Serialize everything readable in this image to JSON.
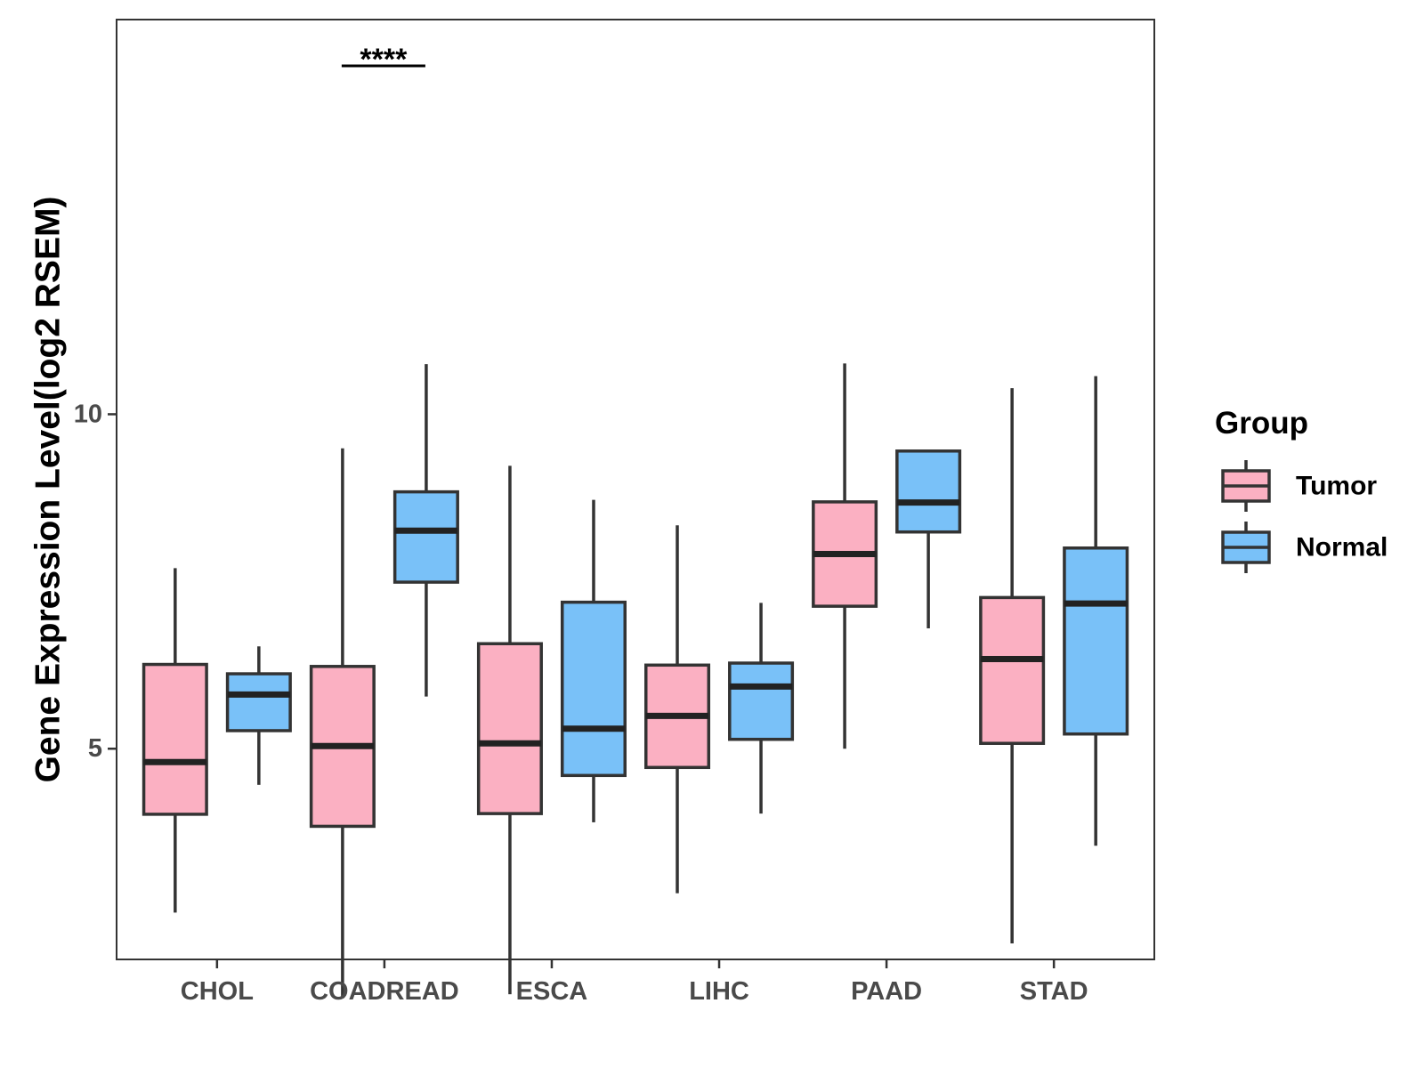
{
  "chart_data": {
    "type": "boxplot",
    "title": "",
    "xlabel": "",
    "ylabel": "Gene Expression Level(log2 RSEM)",
    "ylim": [
      1.85,
      15.9
    ],
    "yticks": [
      5,
      10
    ],
    "categories": [
      "CHOL",
      "COADREAD",
      "ESCA",
      "LIHC",
      "PAAD",
      "STAD"
    ],
    "series": [
      {
        "name": "Tumor",
        "color": "#fbb0c2",
        "boxes": [
          {
            "min": 2.55,
            "q1": 4.02,
            "median": 4.8,
            "q3": 6.26,
            "max": 7.7
          },
          {
            "min": 1.27,
            "q1": 3.84,
            "median": 5.04,
            "q3": 6.23,
            "max": 9.49
          },
          {
            "min": 1.33,
            "q1": 4.03,
            "median": 5.08,
            "q3": 6.57,
            "max": 9.23
          },
          {
            "min": 2.84,
            "q1": 4.72,
            "median": 5.49,
            "q3": 6.25,
            "max": 8.34
          },
          {
            "min": 5.0,
            "q1": 7.13,
            "median": 7.91,
            "q3": 8.69,
            "max": 10.76
          },
          {
            "min": 2.09,
            "q1": 5.08,
            "median": 6.34,
            "q3": 7.26,
            "max": 10.39
          }
        ]
      },
      {
        "name": "Normal",
        "color": "#79c1f8",
        "boxes": [
          {
            "min": 4.46,
            "q1": 5.27,
            "median": 5.81,
            "q3": 6.12,
            "max": 6.53
          },
          {
            "min": 5.78,
            "q1": 7.49,
            "median": 8.26,
            "q3": 8.84,
            "max": 10.75
          },
          {
            "min": 3.9,
            "q1": 4.6,
            "median": 5.3,
            "q3": 7.19,
            "max": 8.72
          },
          {
            "min": 4.03,
            "q1": 5.14,
            "median": 5.93,
            "q3": 6.28,
            "max": 7.18
          },
          {
            "min": 6.8,
            "q1": 8.24,
            "median": 8.68,
            "q3": 9.45,
            "max": 9.45
          },
          {
            "min": 3.55,
            "q1": 5.22,
            "median": 7.17,
            "q3": 8.0,
            "max": 10.57
          }
        ]
      }
    ],
    "annotations": [
      {
        "category": "COADREAD",
        "text": "****"
      }
    ],
    "legend": {
      "title": "Group",
      "position": "right",
      "entries": [
        "Tumor",
        "Normal"
      ]
    },
    "grid": false
  }
}
